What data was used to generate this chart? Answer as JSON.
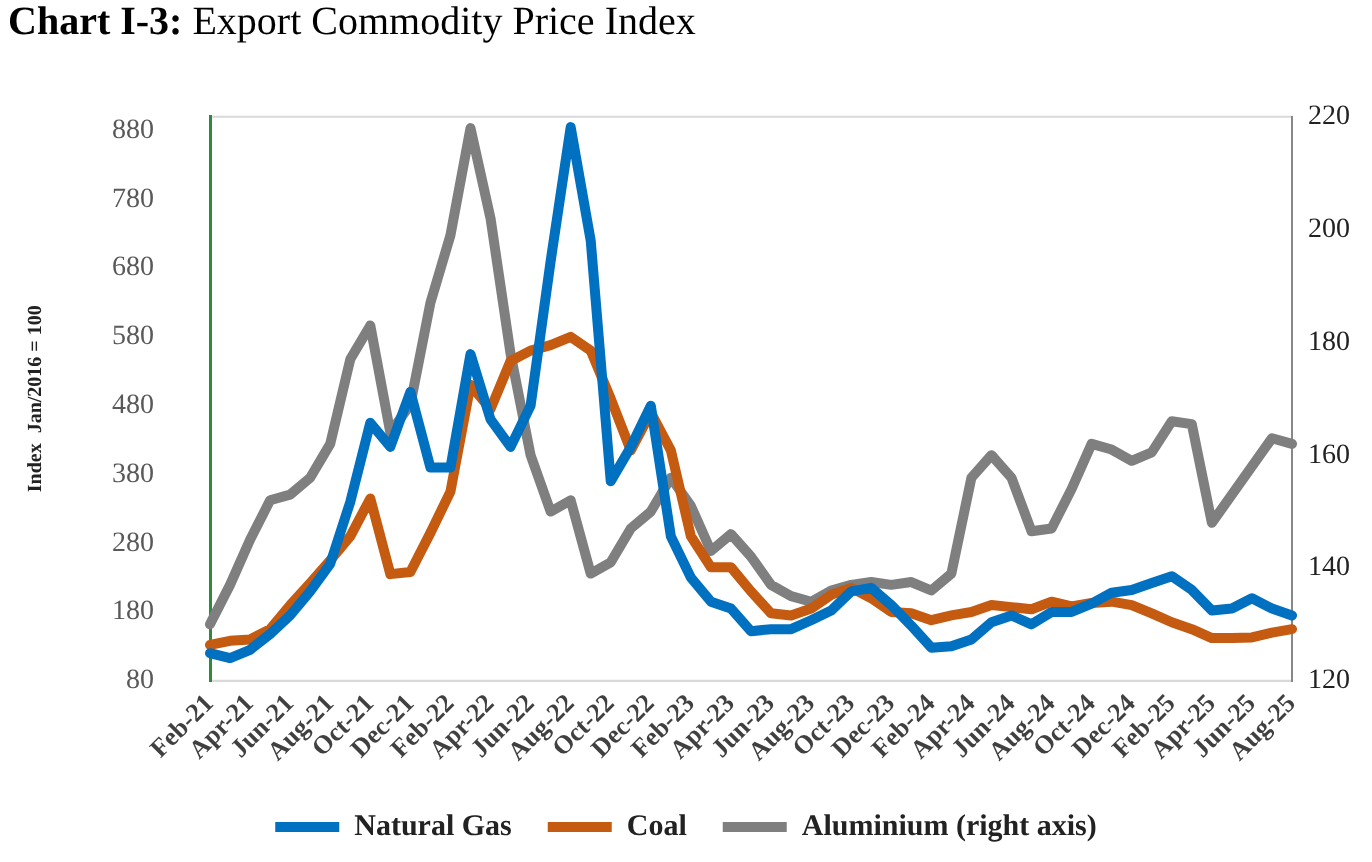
{
  "chart_data": {
    "type": "line",
    "title": "Chart I-3: Export Commodity Price Index",
    "ylabel": "Index  Jan/2016 = 100",
    "categories": [
      "Feb-21",
      null,
      "Apr-21",
      null,
      "Jun-21",
      null,
      "Aug-21",
      null,
      "Oct-21",
      null,
      "Dec-21",
      null,
      "Feb-22",
      null,
      "Apr-22",
      null,
      "Jun-22",
      null,
      "Aug-22",
      null,
      "Oct-22",
      null,
      "Dec-22",
      null,
      "Feb-23",
      null,
      "Apr-23",
      null,
      "Jun-23",
      null,
      "Aug-23",
      null,
      "Oct-23",
      null,
      "Dec-23",
      null,
      "Feb-24",
      null,
      "Apr-24",
      null,
      "Jun-24",
      null,
      "Aug-24",
      null,
      "Oct-24",
      null,
      "Dec-24",
      null,
      "Feb-25",
      null,
      "Apr-25",
      null,
      "Jun-25",
      null,
      "Aug-25"
    ],
    "series": [
      {
        "name": "Natural Gas",
        "color": "#0070c0",
        "values": [
          120,
          113,
          125,
          148,
          175,
          210,
          250,
          340,
          455,
          420,
          500,
          390,
          390,
          555,
          460,
          420,
          480,
          690,
          885,
          720,
          370,
          420,
          480,
          290,
          230,
          195,
          185,
          152,
          155,
          155,
          168,
          182,
          210,
          215,
          190,
          160,
          128,
          130,
          140,
          165,
          175,
          162,
          180,
          180,
          192,
          208,
          212,
          222,
          232,
          212,
          182,
          185,
          200,
          185,
          175
        ]
      },
      {
        "name": "Coal",
        "color": "#c55a11",
        "values": [
          132,
          138,
          140,
          155,
          190,
          222,
          255,
          290,
          345,
          235,
          238,
          295,
          355,
          510,
          475,
          545,
          560,
          568,
          580,
          560,
          490,
          415,
          470,
          415,
          290,
          245,
          245,
          210,
          178,
          175,
          185,
          205,
          215,
          200,
          180,
          178,
          168,
          175,
          180,
          190,
          187,
          184,
          195,
          188,
          193,
          195,
          190,
          178,
          165,
          155,
          142,
          142,
          143,
          150,
          155
        ]
      },
      {
        "name": "Aluminium (right axis)",
        "color": "#7f7f7f",
        "axis": "y2",
        "values": [
          130,
          137,
          145,
          152,
          153,
          156,
          162,
          177,
          183,
          164,
          169,
          187,
          199,
          218,
          202,
          178,
          160,
          150,
          152,
          139,
          141,
          147,
          150,
          156,
          151,
          143,
          146,
          142,
          137,
          135,
          134,
          136,
          137,
          137.5,
          137,
          137.5,
          136,
          139,
          156,
          160,
          156,
          146.5,
          147,
          154,
          162,
          161,
          159,
          160.5,
          166,
          165.5,
          148,
          153,
          158,
          163,
          162
        ]
      }
    ],
    "ylim": [
      80,
      900
    ],
    "yticks": [
      80,
      180,
      280,
      380,
      480,
      580,
      680,
      780,
      880
    ],
    "y2lim": [
      120,
      220
    ],
    "y2ticks": [
      120,
      140,
      160,
      180,
      200,
      220
    ],
    "grid": false,
    "legend": "bottom",
    "marker": "none",
    "line_style": "solid"
  }
}
